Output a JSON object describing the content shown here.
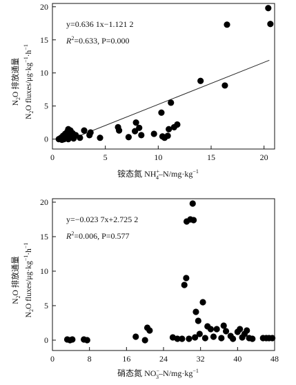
{
  "chart_data": [
    {
      "type": "scatter",
      "title": "",
      "xlabel": {
        "prefix": "铵态氮 NH",
        "sub": "4",
        "sup": "+",
        "rest": "–N/mg·kg",
        "exp": "−1"
      },
      "ylabel": {
        "line1": "N2O 排放通量",
        "line2": "N2O fluxes/μg·kg−1·h−1"
      },
      "xlim": [
        0,
        21
      ],
      "ylim": [
        -1.5,
        20.5
      ],
      "xticks": [
        0,
        5,
        10,
        15,
        20
      ],
      "yticks": [
        0,
        5,
        10,
        15,
        20
      ],
      "annotation": {
        "eq": "y=0.636 1x−1.121 2",
        "stats": "R2=0.633, P=0.000"
      },
      "trendline": {
        "slope": 0.6361,
        "intercept": -1.1212,
        "x_range": [
          2.5,
          20.5
        ]
      },
      "points": [
        [
          0.6,
          0.0
        ],
        [
          0.8,
          0.2
        ],
        [
          0.9,
          -0.1
        ],
        [
          1.0,
          0.5
        ],
        [
          1.1,
          0.0
        ],
        [
          1.2,
          0.8
        ],
        [
          1.3,
          0.2
        ],
        [
          1.4,
          1.1
        ],
        [
          1.5,
          1.5
        ],
        [
          1.5,
          0.0
        ],
        [
          1.6,
          0.4
        ],
        [
          1.7,
          1.3
        ],
        [
          1.9,
          0.9
        ],
        [
          2.0,
          0.1
        ],
        [
          2.2,
          0.6
        ],
        [
          2.6,
          0.2
        ],
        [
          3.0,
          1.3
        ],
        [
          3.5,
          0.6
        ],
        [
          3.6,
          1.0
        ],
        [
          4.5,
          0.2
        ],
        [
          6.2,
          1.8
        ],
        [
          6.3,
          1.3
        ],
        [
          7.2,
          0.3
        ],
        [
          7.9,
          2.5
        ],
        [
          7.8,
          1.2
        ],
        [
          8.2,
          1.7
        ],
        [
          8.4,
          0.6
        ],
        [
          9.6,
          0.8
        ],
        [
          10.3,
          4.0
        ],
        [
          10.4,
          0.4
        ],
        [
          10.6,
          0.2
        ],
        [
          10.9,
          0.5
        ],
        [
          11.0,
          1.5
        ],
        [
          11.2,
          5.5
        ],
        [
          11.5,
          1.8
        ],
        [
          11.8,
          2.2
        ],
        [
          14.0,
          8.8
        ],
        [
          16.3,
          8.1
        ],
        [
          16.5,
          17.3
        ],
        [
          20.4,
          19.8
        ],
        [
          20.6,
          17.4
        ]
      ]
    },
    {
      "type": "scatter",
      "title": "",
      "xlabel": {
        "prefix": "硝态氮 NO",
        "sub": "3",
        "sup": "−",
        "rest": "–N/mg·kg",
        "exp": "−1"
      },
      "ylabel": {
        "line1": "N2O 排放通量",
        "line2": "N2O fluxes/μg·kg−1·h−1"
      },
      "xlim": [
        0,
        48
      ],
      "ylim": [
        -1.5,
        20.5
      ],
      "xticks": [
        0,
        8,
        16,
        24,
        32,
        40,
        48
      ],
      "yticks": [
        0,
        5,
        10,
        15,
        20
      ],
      "annotation": {
        "eq": "y=−0.023 7x+2.725 2",
        "stats": "R2=0.006, P=0.577"
      },
      "points": [
        [
          3.2,
          0.1
        ],
        [
          3.8,
          0.0
        ],
        [
          4.3,
          0.1
        ],
        [
          6.8,
          0.1
        ],
        [
          7.5,
          0.0
        ],
        [
          18.0,
          0.5
        ],
        [
          20.0,
          0.0
        ],
        [
          20.5,
          1.8
        ],
        [
          21.0,
          1.4
        ],
        [
          26.0,
          0.4
        ],
        [
          27.0,
          0.2
        ],
        [
          28.0,
          0.2
        ],
        [
          28.5,
          8.0
        ],
        [
          28.9,
          9.0
        ],
        [
          29.0,
          17.2
        ],
        [
          29.5,
          0.2
        ],
        [
          29.8,
          17.5
        ],
        [
          30.3,
          19.8
        ],
        [
          30.5,
          17.4
        ],
        [
          30.8,
          0.4
        ],
        [
          31.0,
          4.1
        ],
        [
          31.5,
          2.8
        ],
        [
          31.8,
          0.9
        ],
        [
          32.5,
          5.5
        ],
        [
          33.0,
          0.3
        ],
        [
          33.5,
          2.0
        ],
        [
          34.2,
          1.6
        ],
        [
          34.8,
          0.5
        ],
        [
          35.5,
          1.6
        ],
        [
          36.5,
          0.3
        ],
        [
          37.0,
          2.1
        ],
        [
          37.5,
          1.3
        ],
        [
          38.5,
          0.6
        ],
        [
          39.0,
          0.2
        ],
        [
          40.0,
          1.2
        ],
        [
          40.5,
          1.6
        ],
        [
          41.0,
          0.4
        ],
        [
          41.5,
          0.9
        ],
        [
          42.0,
          1.4
        ],
        [
          42.5,
          0.3
        ],
        [
          43.2,
          0.2
        ],
        [
          45.5,
          0.3
        ],
        [
          46.2,
          0.3
        ],
        [
          46.8,
          0.3
        ],
        [
          47.5,
          0.3
        ]
      ]
    }
  ]
}
